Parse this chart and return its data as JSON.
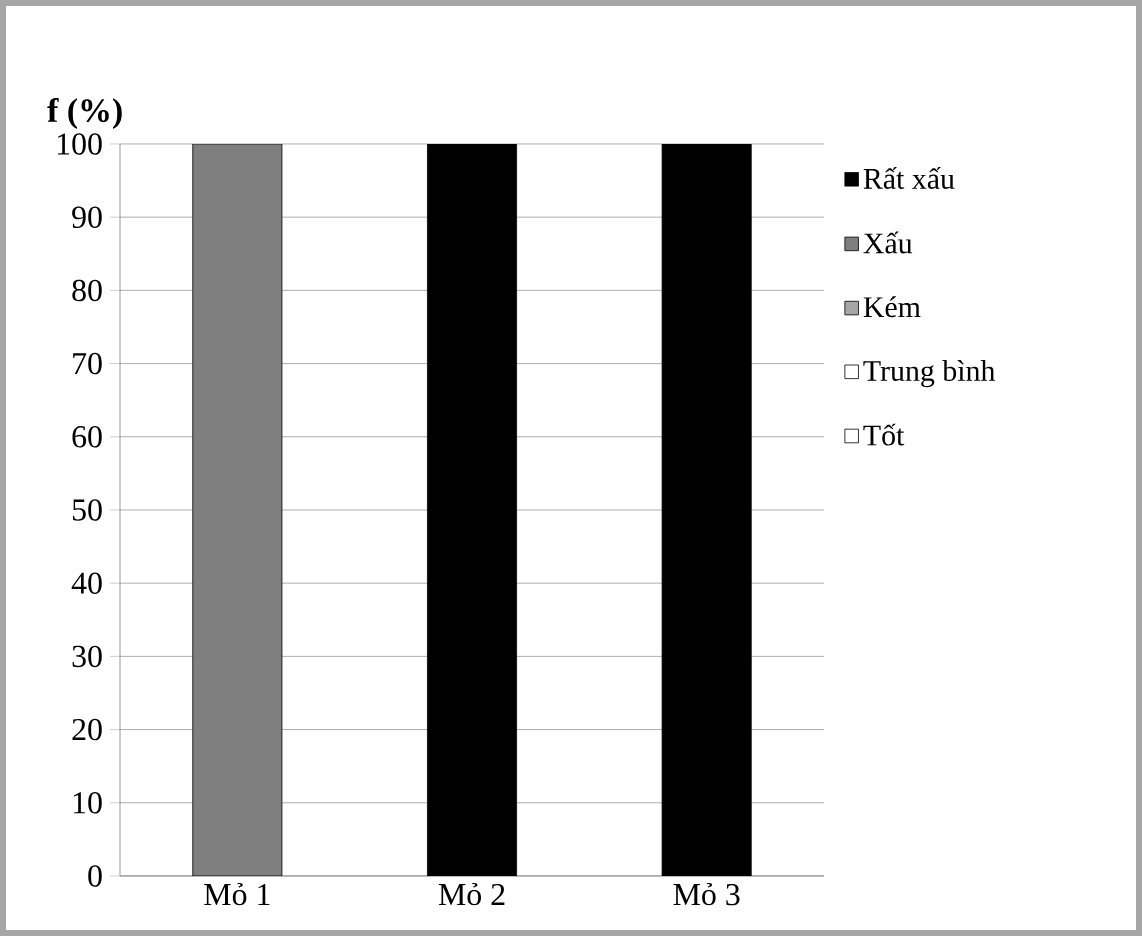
{
  "chart_data": {
    "type": "bar",
    "stacked": true,
    "ylabel": "f (%)",
    "categories": [
      "Mỏ 1",
      "Mỏ 2",
      "Mỏ 3"
    ],
    "series": [
      {
        "name": "Tốt",
        "color": "#ffffff",
        "values": [
          0,
          0,
          0
        ]
      },
      {
        "name": "Trung bình",
        "color": "#ffffff",
        "values": [
          0,
          0,
          0
        ]
      },
      {
        "name": "Kém",
        "color": "#a6a6a6",
        "values": [
          0,
          0,
          0
        ]
      },
      {
        "name": "Xấu",
        "color": "#7f7f7f",
        "values": [
          100,
          0,
          0
        ]
      },
      {
        "name": "Rất xấu",
        "color": "#000000",
        "values": [
          0,
          100,
          100
        ]
      }
    ],
    "ylim": [
      0,
      100
    ],
    "yticks": [
      0,
      10,
      20,
      30,
      40,
      50,
      60,
      70,
      80,
      90,
      100
    ],
    "grid": "y",
    "legend": "right"
  }
}
